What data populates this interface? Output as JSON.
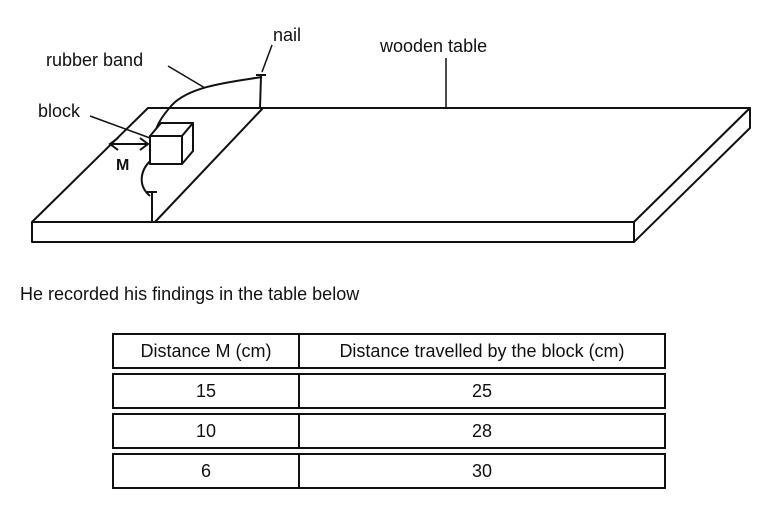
{
  "labels": {
    "nail": "nail",
    "rubber_band": "rubber band",
    "wooden_table": "wooden table",
    "block": "block",
    "m": "M"
  },
  "caption": "He recorded his findings in the table below",
  "table": {
    "headers": [
      "Distance M (cm)",
      "Distance travelled by the block (cm)"
    ],
    "rows": [
      [
        "15",
        "25"
      ],
      [
        "10",
        "28"
      ],
      [
        "6",
        "30"
      ]
    ]
  }
}
